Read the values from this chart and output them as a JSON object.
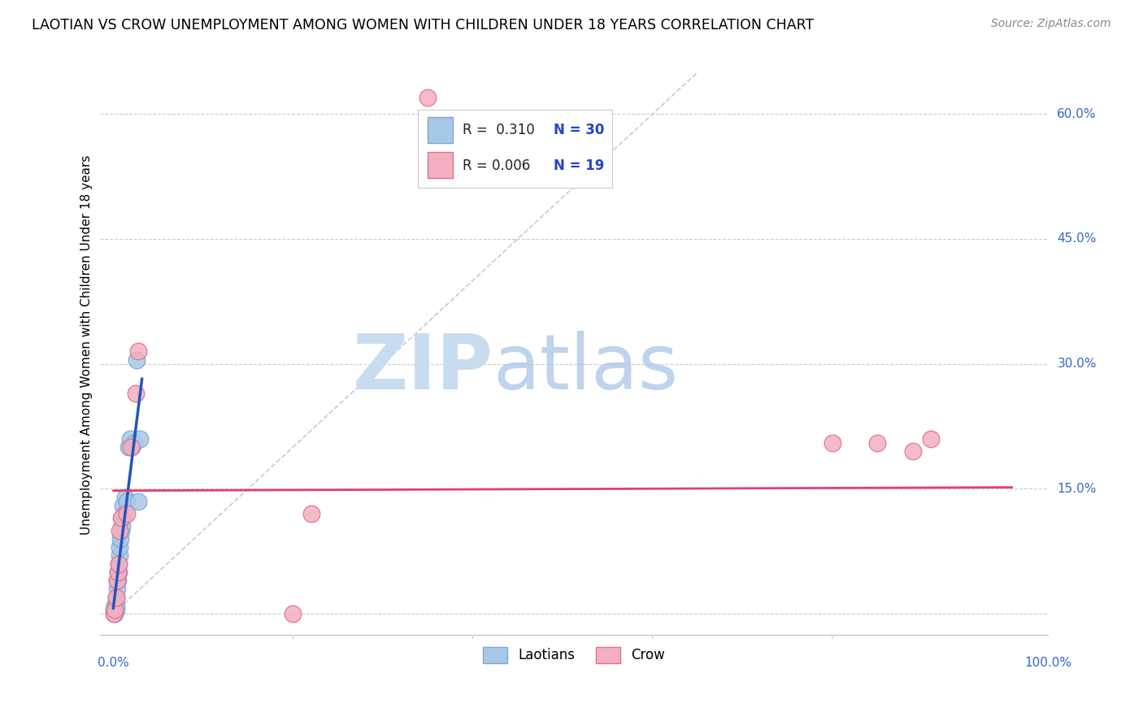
{
  "title": "LAOTIAN VS CROW UNEMPLOYMENT AMONG WOMEN WITH CHILDREN UNDER 18 YEARS CORRELATION CHART",
  "source": "Source: ZipAtlas.com",
  "ylabel": "Unemployment Among Women with Children Under 18 years",
  "yticks": [
    0.0,
    0.15,
    0.3,
    0.45,
    0.6
  ],
  "ytick_labels": [
    "",
    "15.0%",
    "30.0%",
    "45.0%",
    "60.0%"
  ],
  "xlim": [
    -0.015,
    1.04
  ],
  "ylim": [
    -0.025,
    0.67
  ],
  "laotian_color": "#a8c8e8",
  "crow_color": "#f4afc0",
  "laotian_edge": "#80a8d0",
  "crow_edge": "#e07090",
  "regression_blue": "#2255bb",
  "regression_pink": "#e04070",
  "diagonal_color": "#b8c8dc",
  "grid_color": "#cccccc",
  "watermark_zip_color": "#c8dcf0",
  "watermark_atlas_color": "#b0c8e8",
  "laotians_x": [
    0.001,
    0.001,
    0.002,
    0.002,
    0.003,
    0.003,
    0.003,
    0.004,
    0.004,
    0.005,
    0.005,
    0.006,
    0.006,
    0.007,
    0.007,
    0.008,
    0.009,
    0.01,
    0.01,
    0.011,
    0.012,
    0.013,
    0.015,
    0.017,
    0.019,
    0.021,
    0.023,
    0.026,
    0.028,
    0.03
  ],
  "laotians_y": [
    0.0,
    0.005,
    0.0,
    0.01,
    0.005,
    0.01,
    0.02,
    0.03,
    0.04,
    0.04,
    0.05,
    0.05,
    0.06,
    0.07,
    0.08,
    0.09,
    0.1,
    0.105,
    0.115,
    0.13,
    0.12,
    0.14,
    0.135,
    0.2,
    0.21,
    0.2,
    0.205,
    0.305,
    0.135,
    0.21
  ],
  "crow_x": [
    0.001,
    0.002,
    0.003,
    0.004,
    0.005,
    0.006,
    0.007,
    0.009,
    0.015,
    0.02,
    0.025,
    0.028,
    0.2,
    0.22,
    0.8,
    0.85,
    0.89,
    0.91,
    0.35
  ],
  "crow_y": [
    0.0,
    0.005,
    0.02,
    0.04,
    0.05,
    0.06,
    0.1,
    0.115,
    0.12,
    0.2,
    0.265,
    0.315,
    0.0,
    0.12,
    0.205,
    0.205,
    0.195,
    0.21,
    0.62
  ]
}
